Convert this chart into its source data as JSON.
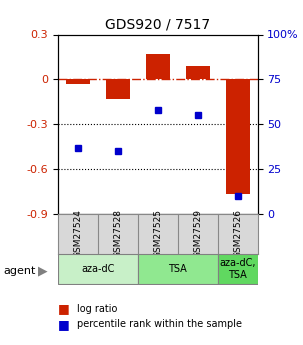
{
  "title": "GDS920 / 7517",
  "samples": [
    "GSM27524",
    "GSM27528",
    "GSM27525",
    "GSM27529",
    "GSM27526"
  ],
  "log_ratio": [
    -0.03,
    -0.13,
    0.17,
    0.09,
    -0.77
  ],
  "percentile": [
    37,
    35,
    58,
    55,
    10
  ],
  "bar_color": "#cc2200",
  "dot_color": "#0000cc",
  "ylim_left": [
    -0.9,
    0.3
  ],
  "ylim_right": [
    0,
    100
  ],
  "yticks_left": [
    0.3,
    0.0,
    -0.3,
    -0.6,
    -0.9
  ],
  "yticks_right": [
    100,
    75,
    50,
    25,
    0
  ],
  "ytick_left_labels": [
    "0.3",
    "0",
    "-0.3",
    "-0.6",
    "-0.9"
  ],
  "ytick_right_labels": [
    "100%",
    "75",
    "50",
    "25",
    "0"
  ],
  "groups": [
    {
      "label": "aza-dC",
      "samples": [
        0,
        1
      ],
      "color": "#c8f0c8"
    },
    {
      "label": "TSA",
      "samples": [
        2,
        3
      ],
      "color": "#90e890"
    },
    {
      "label": "aza-dC,\nTSA",
      "samples": [
        4
      ],
      "color": "#60d860"
    }
  ],
  "agent_label": "agent",
  "legend_items": [
    {
      "color": "#cc2200",
      "label": "log ratio"
    },
    {
      "color": "#0000cc",
      "label": "percentile rank within the sample"
    }
  ],
  "bar_width": 0.6,
  "background_color": "#ffffff",
  "sample_box_color": "#d8d8d8",
  "sample_box_edge": "#888888"
}
